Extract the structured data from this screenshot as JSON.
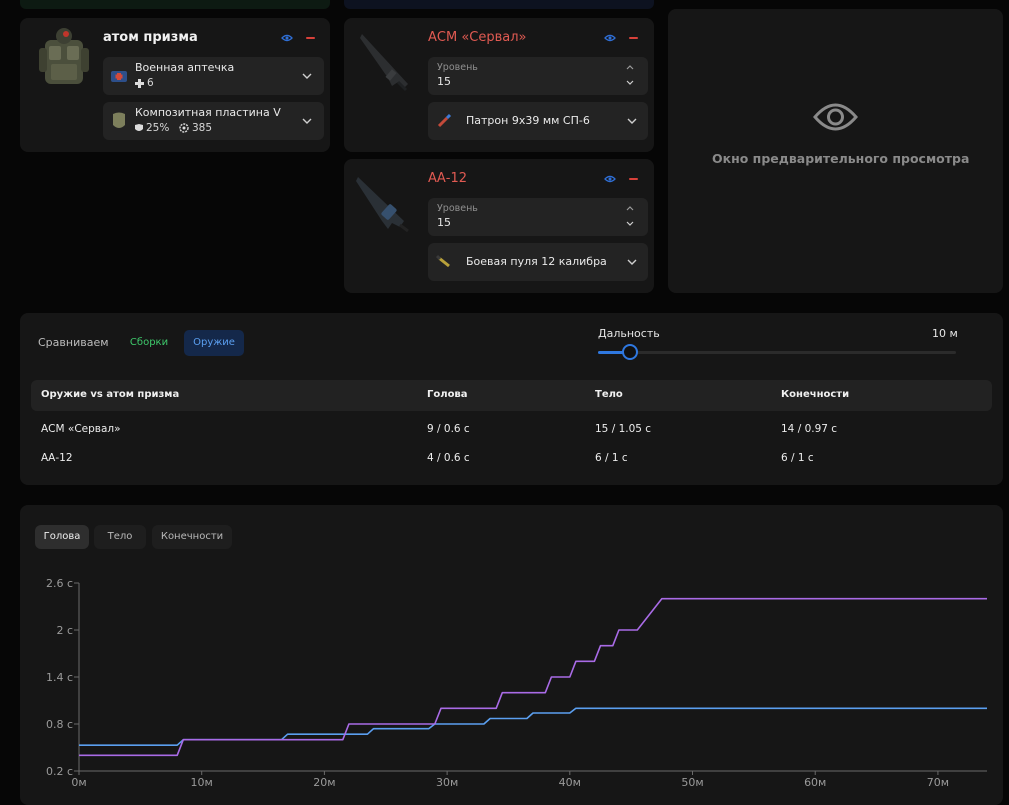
{
  "colors": {
    "accent_blue": "#2f78e0",
    "weapon_red": "#e05a52",
    "series_purple": "#a96be6",
    "series_blue": "#5b9ff0",
    "green_chip": "#3ec96b"
  },
  "armor": {
    "title": "атом призма",
    "icon": "armor-vest-icon",
    "slot1": {
      "label": "Военная аптечка",
      "value": "6",
      "icon": "medkit-icon"
    },
    "slot2": {
      "label": "Композитная пластина V",
      "protection": "25%",
      "durability": "385",
      "icon": "armor-plate-icon"
    }
  },
  "weapons": [
    {
      "name": "АСМ «Сервал»",
      "level_label": "Уровень",
      "level": "15",
      "ammo": "Патрон 9х39 мм СП-6",
      "icon": "rifle-icon"
    },
    {
      "name": "АА-12",
      "level_label": "Уровень",
      "level": "15",
      "ammo": "Боевая пуля 12 калибра",
      "icon": "shotgun-icon"
    }
  ],
  "preview": {
    "text": "Окно предварительного просмотра",
    "icon": "eye-icon"
  },
  "compare": {
    "label": "Сравниваем",
    "chips": [
      "Сборки",
      "Оружие"
    ],
    "active_chip": "Оружие",
    "range_label": "Дальность",
    "range_value": "10 м",
    "range_fraction": 0.09
  },
  "table": {
    "headers": [
      "Оружие vs атом призма",
      "Голова",
      "Тело",
      "Конечности"
    ],
    "rows": [
      [
        "АСМ «Сервал»",
        "9 / 0.6 с",
        "15 / 1.05 с",
        "14 / 0.97 с"
      ],
      [
        "АА-12",
        "4 / 0.6 с",
        "6 / 1 с",
        "6 / 1 с"
      ]
    ]
  },
  "tabs": [
    "Голова",
    "Тело",
    "Конечности"
  ],
  "active_tab": "Голова",
  "chart_data": {
    "type": "line",
    "x_ticks": [
      "0м",
      "10м",
      "20м",
      "30м",
      "40м",
      "50м",
      "60м",
      "70м"
    ],
    "y_ticks": [
      "0.2 с",
      "0.8 с",
      "1.4 с",
      "2 с",
      "2.6 с"
    ],
    "xlim": [
      0,
      74
    ],
    "ylim": [
      0.2,
      2.6
    ],
    "grid": false,
    "series": [
      {
        "color": "#5b9ff0",
        "points": [
          [
            0,
            0.53
          ],
          [
            8,
            0.53
          ],
          [
            8.5,
            0.6
          ],
          [
            16.5,
            0.6
          ],
          [
            17,
            0.67
          ],
          [
            23.5,
            0.67
          ],
          [
            24,
            0.74
          ],
          [
            28.5,
            0.74
          ],
          [
            29,
            0.8
          ],
          [
            33,
            0.8
          ],
          [
            33.5,
            0.87
          ],
          [
            36.5,
            0.87
          ],
          [
            37,
            0.94
          ],
          [
            40,
            0.94
          ],
          [
            40.5,
            1.0
          ],
          [
            74,
            1.0
          ]
        ]
      },
      {
        "color": "#a96be6",
        "points": [
          [
            0,
            0.4
          ],
          [
            8,
            0.4
          ],
          [
            8.5,
            0.6
          ],
          [
            21.5,
            0.6
          ],
          [
            22,
            0.8
          ],
          [
            29,
            0.8
          ],
          [
            29.5,
            1.0
          ],
          [
            34,
            1.0
          ],
          [
            34.5,
            1.2
          ],
          [
            38,
            1.2
          ],
          [
            38.5,
            1.4
          ],
          [
            40,
            1.4
          ],
          [
            40.5,
            1.6
          ],
          [
            42,
            1.6
          ],
          [
            42.5,
            1.8
          ],
          [
            43.5,
            1.8
          ],
          [
            44,
            2.0
          ],
          [
            45.5,
            2.0
          ],
          [
            47.5,
            2.4
          ],
          [
            74,
            2.4
          ]
        ]
      }
    ]
  }
}
